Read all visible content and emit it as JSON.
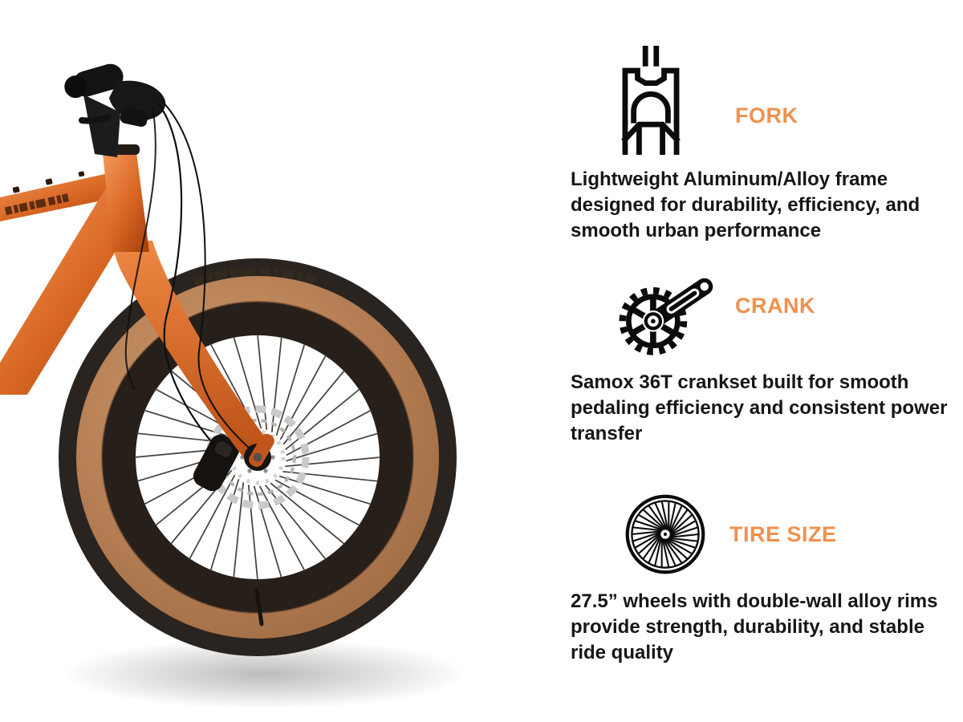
{
  "page": {
    "background": "#ffffff",
    "accent_color": "#f0914d",
    "text_color": "#161616",
    "bike_frame_color": "#cf5d24",
    "tire_wall_color": "#b57e55"
  },
  "features": [
    {
      "icon": "fork-icon",
      "title": "FORK",
      "description": "Lightweight Aluminum/Alloy frame\ndesigned for durability, efficiency, and\nsmooth urban performance"
    },
    {
      "icon": "crank-icon",
      "title": "CRANK",
      "description": "Samox 36T crankset built for smooth\npedaling efficiency and consistent power\ntransfer"
    },
    {
      "icon": "tire-size-icon",
      "title": "TIRE SIZE",
      "description": "27.5” wheels with double-wall alloy rims\nprovide strength, durability, and stable\nride quality"
    }
  ]
}
